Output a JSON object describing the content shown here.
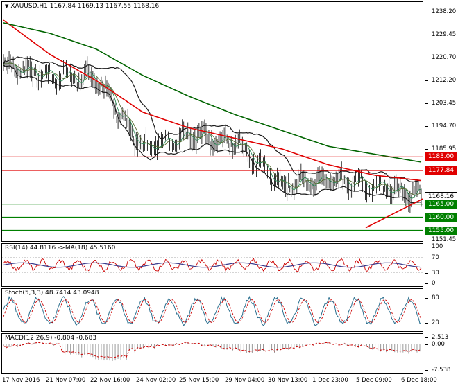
{
  "chart_title": {
    "symbol_tf": "XAUUSD,H1",
    "ohlc": "1167.84 1169.13 1167.55 1168.16"
  },
  "main_axis": {
    "ticks": [
      "1238.20",
      "1229.45",
      "1220.70",
      "1212.20",
      "1203.45",
      "1194.70",
      "1185.95",
      "1177.20",
      "1168.45",
      "1159.70",
      "1151.45"
    ],
    "tick_values": [
      1238.2,
      1229.45,
      1220.7,
      1212.2,
      1203.45,
      1194.7,
      1185.95,
      1177.2,
      1168.45,
      1159.7,
      1151.45
    ]
  },
  "levels": {
    "resistance": [
      {
        "label": "1183.00",
        "value": 1183.0,
        "color": "#e00000"
      },
      {
        "label": "1177.84",
        "value": 1177.84,
        "color": "#e00000"
      }
    ],
    "support": [
      {
        "label": "1165.00",
        "value": 1165.0,
        "color": "#008000"
      },
      {
        "label": "1160.00",
        "value": 1160.0,
        "color": "#008000"
      },
      {
        "label": "1155.00",
        "value": 1155.0,
        "color": "#008000"
      }
    ],
    "current_price": {
      "label": "1168.16",
      "value": 1168.16
    }
  },
  "rsi": {
    "title": "RSI(14) 44.8116  ->MA(18) 45.5160",
    "ticks": [
      "100",
      "70",
      "30",
      "0"
    ]
  },
  "stoch": {
    "title": "Stoch(5,3,3) 48.7414 43.0948",
    "ticks": [
      "80",
      "20"
    ]
  },
  "macd": {
    "title": "MACD(12,26,9) -0.804 -0.683",
    "ticks": [
      "2.513",
      "0.00",
      "-7.538"
    ]
  },
  "x_axis": {
    "labels": [
      "17 Nov 2016",
      "21 Nov 07:00",
      "22 Nov 16:00",
      "24 Nov 02:00",
      "25 Nov 15:00",
      "29 Nov 04:00",
      "30 Nov 13:00",
      "1 Dec 23:00",
      "5 Dec 09:00",
      "6 Dec 18:00"
    ]
  },
  "colors": {
    "ma_red": "#e00000",
    "ma_green": "#006400",
    "bollinger": "#1a1a1a",
    "support": "#008000",
    "resistance": "#e00000",
    "rsi_line": "#3a3a8c",
    "signal": "#cc0000"
  },
  "chart_data": {
    "type": "line",
    "title": "XAUUSD,H1",
    "x": [
      "17 Nov 2016",
      "21 Nov 07:00",
      "22 Nov 16:00",
      "24 Nov 02:00",
      "25 Nov 15:00",
      "29 Nov 04:00",
      "30 Nov 13:00",
      "1 Dec 23:00",
      "5 Dec 09:00",
      "6 Dec 18:00"
    ],
    "series": [
      {
        "values": [
          1218,
          1214,
          1213,
          1186,
          1192,
          1188,
          1172,
          1175,
          1172,
          1168.16
        ]
      },
      {
        "values": [
          1235,
          1222,
          1212,
          1200,
          1194,
          1190,
          1186,
          1180,
          1176,
          1174
        ]
      },
      {
        "values": [
          1234,
          1230,
          1224,
          1214,
          1206,
          1199,
          1193,
          1187,
          1184,
          1181
        ]
      }
    ],
    "ylim": [
      1150,
      1240
    ]
  }
}
